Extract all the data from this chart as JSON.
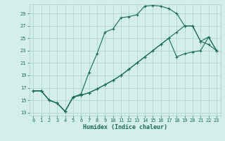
{
  "xlabel": "Humidex (Indice chaleur)",
  "bg_color": "#d4eeea",
  "grid_color": "#a8d0cc",
  "line_color": "#1a6b5a",
  "xlim": [
    -0.5,
    23.5
  ],
  "ylim": [
    12.5,
    30.5
  ],
  "yticks": [
    13,
    15,
    17,
    19,
    21,
    23,
    25,
    27,
    29
  ],
  "xticks": [
    0,
    1,
    2,
    3,
    4,
    5,
    6,
    7,
    8,
    9,
    10,
    11,
    12,
    13,
    14,
    15,
    16,
    17,
    18,
    19,
    20,
    21,
    22,
    23
  ],
  "series1": [
    16.5,
    16.5,
    15.0,
    14.5,
    13.2,
    15.5,
    16.0,
    19.5,
    22.5,
    26.0,
    26.5,
    28.3,
    28.5,
    28.8,
    30.2,
    30.3,
    30.2,
    29.8,
    29.0,
    27.0,
    27.0,
    24.5,
    24.0,
    23.0
  ],
  "series2": [
    16.5,
    16.5,
    15.0,
    14.5,
    13.2,
    15.5,
    15.8,
    16.2,
    16.8,
    17.5,
    18.2,
    19.0,
    20.0,
    21.0,
    22.0,
    23.0,
    24.0,
    25.0,
    22.0,
    22.5,
    22.8,
    23.0,
    25.2,
    23.0
  ],
  "series3": [
    16.5,
    16.5,
    15.0,
    14.5,
    13.2,
    15.5,
    15.8,
    16.2,
    16.8,
    17.5,
    18.2,
    19.0,
    20.0,
    21.0,
    22.0,
    23.0,
    24.0,
    25.0,
    26.0,
    27.0,
    27.0,
    24.5,
    25.2,
    23.0
  ]
}
